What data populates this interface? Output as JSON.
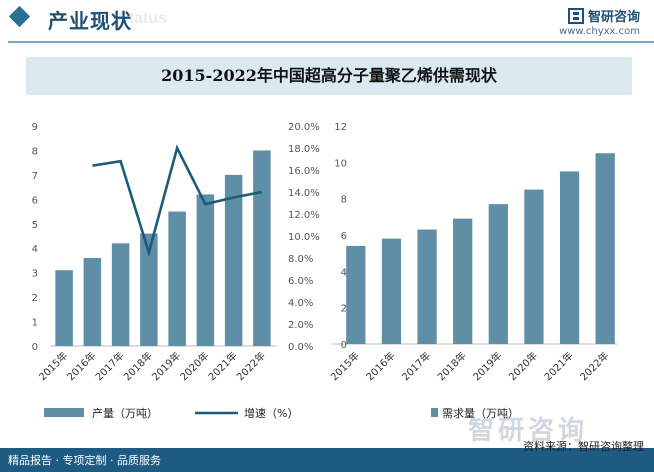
{
  "header": {
    "section_title": "产业现状",
    "bg_word": "Status",
    "brand_name": "智研咨询",
    "brand_url": "www.chyxx.com"
  },
  "chart_title": "2015-2022年中国超高分子量聚乙烯供需现状",
  "chart_data": [
    {
      "type": "bar+line",
      "categories": [
        "2015年",
        "2016年",
        "2017年",
        "2018年",
        "2019年",
        "2020年",
        "2021年",
        "2022年"
      ],
      "series": [
        {
          "name": "产量（万吨）",
          "type": "bar",
          "axis": "left",
          "values": [
            3.1,
            3.6,
            4.2,
            4.6,
            5.5,
            6.2,
            7.0,
            8.0
          ]
        },
        {
          "name": "增速（%）",
          "type": "line",
          "axis": "right",
          "values": [
            null,
            16.4,
            16.8,
            8.5,
            18.0,
            12.9,
            13.5,
            14.0
          ]
        }
      ],
      "left_axis": {
        "min": 0,
        "max": 9,
        "ticks": [
          "0",
          "1",
          "2",
          "3",
          "4",
          "5",
          "6",
          "7",
          "8",
          "9"
        ]
      },
      "right_axis": {
        "min": 0,
        "max": 20,
        "ticks": [
          "0.0%",
          "2.0%",
          "4.0%",
          "6.0%",
          "8.0%",
          "10.0%",
          "12.0%",
          "14.0%",
          "16.0%",
          "18.0%",
          "20.0%"
        ]
      },
      "colors": {
        "bar": "#5f8fa6",
        "line": "#1a5c7a"
      },
      "legend": [
        "产量（万吨）",
        "增速（%）"
      ]
    },
    {
      "type": "bar",
      "categories": [
        "2015年",
        "2016年",
        "2017年",
        "2018年",
        "2019年",
        "2020年",
        "2021年",
        "2022年"
      ],
      "series": [
        {
          "name": "需求量（万吨）",
          "type": "bar",
          "values": [
            5.4,
            5.8,
            6.3,
            6.9,
            7.7,
            8.5,
            9.5,
            10.5
          ]
        }
      ],
      "y_axis": {
        "min": 0,
        "max": 12,
        "ticks": [
          "0",
          "2",
          "4",
          "6",
          "8",
          "10",
          "12"
        ]
      },
      "colors": {
        "bar": "#5f8fa6"
      },
      "legend": [
        "需求量（万吨）"
      ]
    }
  ],
  "footer": {
    "left_text": "精品报告 · 专项定制 · 品质服务",
    "source": "资料来源：智研咨询整理",
    "big_brand": "智研咨询"
  }
}
